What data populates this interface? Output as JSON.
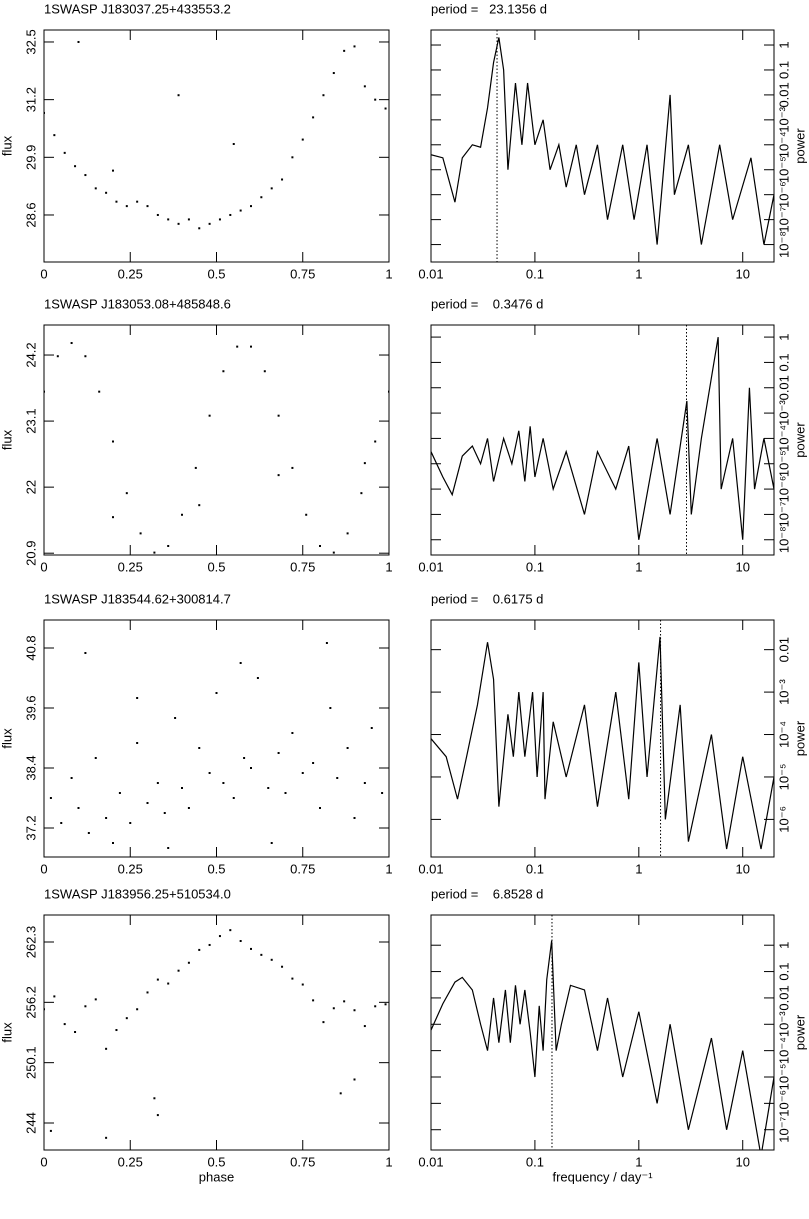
{
  "chart_data": [
    {
      "type": "scatter",
      "title": "1SWASP J183037.25+433553.2",
      "y_label": "flux",
      "color": "#000000",
      "x": [
        0,
        0.03,
        0.06,
        0.09,
        0.12,
        0.15,
        0.18,
        0.21,
        0.24,
        0.27,
        0.3,
        0.33,
        0.36,
        0.39,
        0.42,
        0.45,
        0.48,
        0.51,
        0.54,
        0.57,
        0.6,
        0.63,
        0.66,
        0.69,
        0.72,
        0.75,
        0.78,
        0.81,
        0.84,
        0.87,
        0.9,
        0.93,
        0.96,
        0.99,
        0.1,
        0.39,
        0.2,
        0.55
      ],
      "values": [
        30.9,
        30.4,
        30.0,
        29.7,
        29.5,
        29.2,
        29.1,
        28.9,
        28.8,
        28.9,
        28.8,
        28.6,
        28.5,
        28.4,
        28.5,
        28.3,
        28.4,
        28.5,
        28.6,
        28.7,
        28.8,
        29.0,
        29.2,
        29.4,
        29.9,
        30.3,
        30.8,
        31.3,
        31.8,
        32.3,
        32.4,
        31.5,
        31.2,
        31.0,
        32.5,
        31.3,
        29.6,
        30.2
      ],
      "xlim": [
        0,
        1
      ],
      "ylim": [
        27.54,
        32.77
      ],
      "xticks": [
        0,
        0.25,
        0.5,
        0.75,
        1
      ],
      "yticks": [
        28.6,
        29.9,
        31.2,
        32.5
      ]
    },
    {
      "type": "line",
      "title": "period =   23.1356 d",
      "y_label": "power",
      "color": "#000000",
      "log_x": true,
      "log_y": true,
      "marker_x": 0.0432,
      "x": [
        0.01,
        0.013,
        0.017,
        0.02,
        0.025,
        0.03,
        0.035,
        0.04,
        0.045,
        0.05,
        0.055,
        0.065,
        0.075,
        0.085,
        0.1,
        0.12,
        0.14,
        0.17,
        0.2,
        0.25,
        0.3,
        0.4,
        0.5,
        0.7,
        0.9,
        1.2,
        1.5,
        2,
        2.2,
        3,
        4,
        6,
        8,
        12,
        16,
        20
      ],
      "values": [
        4e-05,
        3e-05,
        5e-07,
        3e-05,
        0.0001,
        8e-05,
        0.003,
        0.2,
        2,
        0.1,
        1e-05,
        0.03,
        0.0001,
        0.03,
        0.0001,
        0.001,
        1e-05,
        0.0001,
        2e-06,
        0.0001,
        1e-06,
        0.0001,
        1e-07,
        0.0001,
        1e-07,
        0.0001,
        1e-08,
        0.01,
        1e-06,
        0.0001,
        1e-08,
        0.0001,
        1e-07,
        3e-05,
        1e-08,
        1e-06
      ],
      "xlim": [
        0.01,
        20
      ],
      "ylim": [
        2e-09,
        4
      ],
      "xticks": [
        0.01,
        0.1,
        1,
        10
      ],
      "yticks": [
        {
          "value": 1e-08,
          "label": "10⁻⁸"
        },
        {
          "value": 1e-07,
          "label": "10⁻⁷"
        },
        {
          "value": 1e-06,
          "label": "10⁻⁶"
        },
        {
          "value": 1e-05,
          "label": "10⁻⁵"
        },
        {
          "value": 0.0001,
          "label": "10⁻⁴"
        },
        {
          "value": 0.001,
          "label": "10⁻³"
        },
        0.01,
        0.1,
        1
      ]
    },
    {
      "type": "scatter",
      "title": "1SWASP J183053.08+485848.6",
      "y_label": "flux",
      "color": "#000000",
      "x": [
        0,
        0.04,
        0.08,
        0.12,
        0.16,
        0.2,
        0.24,
        0.28,
        0.32,
        0.36,
        0.4,
        0.44,
        0.48,
        0.52,
        0.56,
        0.6,
        0.64,
        0.68,
        0.72,
        0.76,
        0.8,
        0.84,
        0.88,
        0.92,
        0.96,
        1,
        0.2,
        0.45,
        0.68,
        0.93
      ],
      "values": [
        23.59,
        24.18,
        24.4,
        24.18,
        23.59,
        22.76,
        21.9,
        21.23,
        20.91,
        21.02,
        21.54,
        22.32,
        23.19,
        23.93,
        24.34,
        24.34,
        23.93,
        23.19,
        22.32,
        21.54,
        21.02,
        20.91,
        21.23,
        21.9,
        22.76,
        23.59,
        21.5,
        21.7,
        22.2,
        22.4
      ],
      "xlim": [
        0,
        1
      ],
      "ylim": [
        20.87,
        24.7
      ],
      "xticks": [
        0,
        0.25,
        0.5,
        0.75,
        1
      ],
      "yticks": [
        20.9,
        22,
        23.1,
        24.2
      ]
    },
    {
      "type": "line",
      "title": "period =    0.3476 d",
      "y_label": "power",
      "color": "#000000",
      "log_x": true,
      "log_y": true,
      "marker_x": 2.877,
      "x": [
        0.01,
        0.013,
        0.016,
        0.02,
        0.025,
        0.03,
        0.035,
        0.04,
        0.05,
        0.06,
        0.07,
        0.08,
        0.09,
        0.1,
        0.12,
        0.15,
        0.2,
        0.3,
        0.4,
        0.6,
        0.8,
        1,
        1.5,
        2,
        2.9,
        3.2,
        4,
        5.8,
        6.2,
        8,
        10,
        11.6,
        13,
        16,
        20
      ],
      "values": [
        3e-05,
        3e-06,
        6e-07,
        2e-05,
        5e-05,
        1e-05,
        0.0001,
        2e-06,
        0.0001,
        1e-05,
        0.0002,
        2e-06,
        0.0003,
        3e-06,
        0.0001,
        1e-06,
        3e-05,
        1e-07,
        3e-05,
        1e-06,
        5e-05,
        1e-08,
        0.0001,
        1e-07,
        0.003,
        1e-07,
        0.0001,
        1,
        1e-06,
        0.0001,
        1e-08,
        0.01,
        1e-06,
        0.0001,
        1e-06
      ],
      "xlim": [
        0.01,
        20
      ],
      "ylim": [
        2.5e-09,
        3
      ],
      "xticks": [
        0.01,
        0.1,
        1,
        10
      ],
      "yticks": [
        {
          "value": 1e-08,
          "label": "10⁻⁸"
        },
        {
          "value": 1e-07,
          "label": "10⁻⁷"
        },
        {
          "value": 1e-06,
          "label": "10⁻⁶"
        },
        {
          "value": 1e-05,
          "label": "10⁻⁵"
        },
        {
          "value": 0.0001,
          "label": "10⁻⁴"
        },
        {
          "value": 0.001,
          "label": "10⁻³"
        },
        0.01,
        0.1,
        1
      ]
    },
    {
      "type": "scatter",
      "title": "1SWASP J183544.62+300814.7",
      "y_label": "flux",
      "color": "#000000",
      "x": [
        0.02,
        0.05,
        0.08,
        0.1,
        0.13,
        0.15,
        0.18,
        0.2,
        0.22,
        0.25,
        0.27,
        0.3,
        0.33,
        0.35,
        0.38,
        0.4,
        0.42,
        0.45,
        0.48,
        0.5,
        0.52,
        0.55,
        0.58,
        0.6,
        0.62,
        0.65,
        0.68,
        0.7,
        0.72,
        0.75,
        0.78,
        0.8,
        0.83,
        0.85,
        0.88,
        0.9,
        0.93,
        0.95,
        0.98,
        0.12,
        0.36,
        0.57,
        0.82,
        0.27,
        0.66
      ],
      "values": [
        37.8,
        37.3,
        38.2,
        37.6,
        37.1,
        38.6,
        37.4,
        36.9,
        37.9,
        37.3,
        38.9,
        37.7,
        38.1,
        37.5,
        39.4,
        38.0,
        37.6,
        38.8,
        38.3,
        39.9,
        38.1,
        37.8,
        38.6,
        38.4,
        40.2,
        38.0,
        38.7,
        37.9,
        39.1,
        38.3,
        38.5,
        37.6,
        39.6,
        38.2,
        38.8,
        37.4,
        38.1,
        39.2,
        37.9,
        40.7,
        36.8,
        40.5,
        40.9,
        39.8,
        36.9
      ],
      "xlim": [
        0,
        1
      ],
      "ylim": [
        36.62,
        41.36
      ],
      "xticks": [
        0,
        0.25,
        0.5,
        0.75,
        1
      ],
      "yticks": [
        37.2,
        38.4,
        39.6,
        40.8
      ]
    },
    {
      "type": "line",
      "title": "period =    0.6175 d",
      "y_label": "power",
      "color": "#000000",
      "log_x": true,
      "log_y": true,
      "marker_x": 1.619,
      "x": [
        0.01,
        0.014,
        0.018,
        0.022,
        0.028,
        0.035,
        0.04,
        0.045,
        0.055,
        0.062,
        0.07,
        0.08,
        0.095,
        0.105,
        0.12,
        0.125,
        0.15,
        0.2,
        0.3,
        0.4,
        0.6,
        0.8,
        1,
        1.2,
        1.6,
        1.8,
        2.5,
        3,
        5,
        7,
        10,
        15,
        20
      ],
      "values": [
        8e-05,
        3e-05,
        3e-06,
        3e-05,
        0.0005,
        0.015,
        0.002,
        2e-06,
        0.0003,
        3e-05,
        0.001,
        3e-05,
        0.001,
        1e-05,
        0.001,
        3e-06,
        0.0002,
        1e-05,
        0.0005,
        2e-06,
        0.001,
        3e-06,
        0.005,
        1e-05,
        0.02,
        1e-06,
        0.0005,
        3e-07,
        0.0001,
        2e-07,
        3e-05,
        2e-07,
        1e-05
      ],
      "xlim": [
        0.01,
        20
      ],
      "ylim": [
        1.3e-07,
        0.05
      ],
      "xticks": [
        0.01,
        0.1,
        1,
        10
      ],
      "yticks": [
        {
          "value": 1e-06,
          "label": "10⁻⁶"
        },
        {
          "value": 1e-05,
          "label": "10⁻⁵"
        },
        {
          "value": 0.0001,
          "label": "10⁻⁴"
        },
        {
          "value": 0.001,
          "label": "10⁻³"
        },
        0.01
      ]
    },
    {
      "type": "scatter",
      "title": "1SWASP J183956.25+510534.0",
      "y_label": "flux",
      "x_label": "phase",
      "color": "#000000",
      "x": [
        0,
        0.03,
        0.06,
        0.09,
        0.12,
        0.15,
        0.18,
        0.21,
        0.24,
        0.27,
        0.3,
        0.33,
        0.36,
        0.39,
        0.42,
        0.45,
        0.48,
        0.51,
        0.54,
        0.57,
        0.6,
        0.63,
        0.66,
        0.69,
        0.72,
        0.75,
        0.78,
        0.81,
        0.84,
        0.87,
        0.9,
        0.93,
        0.96,
        0.99,
        0.02,
        0.32,
        0.33,
        0.86,
        0.18,
        0.9
      ],
      "values": [
        255.5,
        256.8,
        254.0,
        253.2,
        255.8,
        256.5,
        251.5,
        253.4,
        254.6,
        255.5,
        257.2,
        258.5,
        258.1,
        259.4,
        260.2,
        261.5,
        262.0,
        262.9,
        263.5,
        262.4,
        261.6,
        261.0,
        260.5,
        259.8,
        258.6,
        258.0,
        256.4,
        254.2,
        255.6,
        256.3,
        255.4,
        253.8,
        255.8,
        256.0,
        243.2,
        246.5,
        244.8,
        247.0,
        242.5,
        248.4
      ],
      "xlim": [
        0,
        1
      ],
      "ylim": [
        241.27,
        265.03
      ],
      "xticks": [
        0,
        0.25,
        0.5,
        0.75,
        1
      ],
      "yticks": [
        244,
        250.1,
        256.2,
        262.3
      ]
    },
    {
      "type": "line",
      "title": "period =    6.8528 d",
      "y_label": "power",
      "x_label": "frequency / day⁻¹",
      "color": "#000000",
      "log_x": true,
      "log_y": true,
      "marker_x": 0.146,
      "x": [
        0.01,
        0.013,
        0.017,
        0.02,
        0.025,
        0.03,
        0.035,
        0.04,
        0.045,
        0.052,
        0.058,
        0.065,
        0.072,
        0.08,
        0.09,
        0.1,
        0.11,
        0.12,
        0.13,
        0.145,
        0.16,
        0.18,
        0.22,
        0.3,
        0.4,
        0.5,
        0.7,
        1,
        1.5,
        2,
        3,
        5,
        7,
        10,
        15,
        20
      ],
      "values": [
        0.0006,
        0.006,
        0.04,
        0.06,
        0.02,
        0.001,
        0.0001,
        0.01,
        0.0002,
        0.02,
        0.0002,
        0.03,
        0.001,
        0.02,
        0.0005,
        1e-05,
        0.005,
        0.0001,
        0.05,
        1.5,
        0.0001,
        0.001,
        0.03,
        0.02,
        0.0001,
        0.01,
        1e-05,
        0.003,
        1e-06,
        0.001,
        1e-07,
        0.0003,
        1e-07,
        0.0001,
        1e-08,
        1e-05
      ],
      "xlim": [
        0.01,
        20
      ],
      "ylim": [
        1.7e-08,
        14
      ],
      "xticks": [
        0.01,
        0.1,
        1,
        10
      ],
      "yticks": [
        {
          "value": 1e-07,
          "label": "10⁻⁷"
        },
        {
          "value": 1e-06,
          "label": "10⁻⁶"
        },
        {
          "value": 1e-05,
          "label": "10⁻⁵"
        },
        {
          "value": 0.0001,
          "label": "10⁻⁴"
        },
        {
          "value": 0.001,
          "label": "10⁻³"
        },
        0.01,
        0.1,
        1
      ]
    }
  ]
}
